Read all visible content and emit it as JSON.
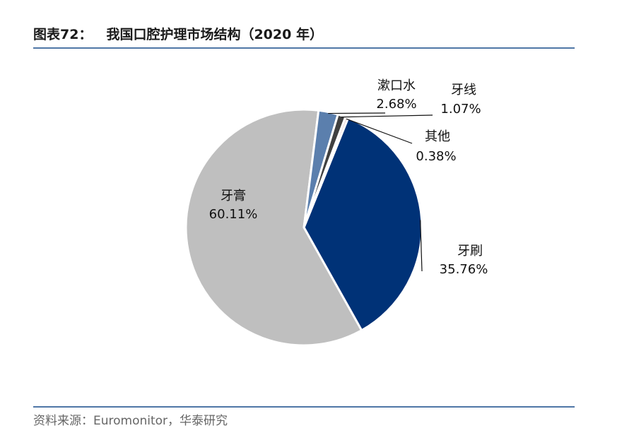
{
  "header": {
    "figure_number": "图表72：",
    "title": "我国口腔护理市场结构（2020 年）"
  },
  "footer": {
    "source": "资料来源：Euromonitor，华泰研究"
  },
  "colors": {
    "rule": "#4f77a6",
    "slice_toothbrush": "#003277",
    "slice_toothpaste": "#bfbfbf",
    "slice_mouthwash": "#5b7fad",
    "slice_floss": "#404040",
    "slice_other": "#e8c8c8",
    "slice_border": "#ffffff",
    "leader": "#111111"
  },
  "chart_data": {
    "type": "pie",
    "slices": [
      {
        "name": "牙刷",
        "value": 35.76,
        "label": "35.76%",
        "color": "#003277"
      },
      {
        "name": "牙膏",
        "value": 60.11,
        "label": "60.11%",
        "color": "#bfbfbf"
      },
      {
        "name": "漱口水",
        "value": 2.68,
        "label": "2.68%",
        "color": "#5b7fad"
      },
      {
        "name": "牙线",
        "value": 1.07,
        "label": "1.07%",
        "color": "#404040"
      },
      {
        "name": "其他",
        "value": 0.38,
        "label": "0.38%",
        "color": "#e8c8c8"
      }
    ],
    "start_direction": "clockwise from toothbrush slice",
    "legend": "none (inline labels)"
  }
}
